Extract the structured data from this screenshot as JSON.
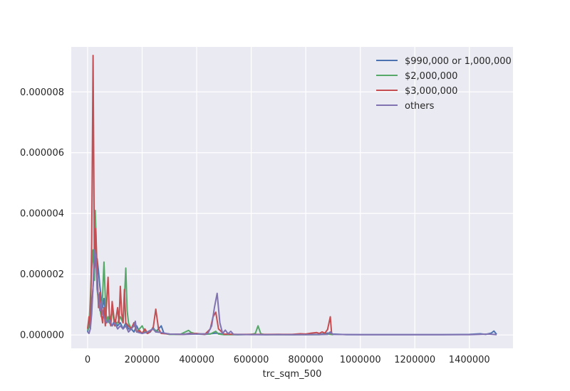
{
  "chart_data": {
    "type": "line",
    "title": "",
    "xlabel": "trc_sqm_500",
    "ylabel": "",
    "xlim": [
      -60000,
      1560000
    ],
    "ylim": [
      -4.4e-07,
      9.48e-06
    ],
    "grid": true,
    "background": "#EAEAF2",
    "legend_position": "top-right",
    "x_ticks": [
      0,
      200000,
      400000,
      600000,
      800000,
      1000000,
      1200000,
      1400000
    ],
    "x_tick_labels": [
      "0",
      "200000",
      "400000",
      "600000",
      "800000",
      "1000000",
      "1200000",
      "1400000"
    ],
    "y_ticks": [
      0,
      2e-06,
      4e-06,
      6e-06,
      8e-06
    ],
    "y_tick_labels": [
      "0.000000",
      "0.000002",
      "0.000004",
      "0.000006",
      "0.000008"
    ],
    "series": [
      {
        "name": "$990,000 or 1,000,000",
        "color": "#4C72B0",
        "points": [
          [
            0,
            1e-07
          ],
          [
            8000,
            4e-07
          ],
          [
            15000,
            9e-07
          ],
          [
            20000,
            1.6e-06
          ],
          [
            25000,
            2.2e-06
          ],
          [
            30000,
            2.6e-06
          ],
          [
            35000,
            2.5e-06
          ],
          [
            40000,
            2.1e-06
          ],
          [
            45000,
            1.6e-06
          ],
          [
            50000,
            1.2e-06
          ],
          [
            55000,
            9e-07
          ],
          [
            60000,
            1.2e-06
          ],
          [
            65000,
            8e-07
          ],
          [
            70000,
            5e-07
          ],
          [
            80000,
            4e-07
          ],
          [
            90000,
            3e-07
          ],
          [
            100000,
            5e-07
          ],
          [
            110000,
            3e-07
          ],
          [
            120000,
            4e-07
          ],
          [
            130000,
            2e-07
          ],
          [
            140000,
            4e-07
          ],
          [
            150000,
            2e-07
          ],
          [
            160000,
            2e-07
          ],
          [
            170000,
            1e-07
          ],
          [
            180000,
            3e-07
          ],
          [
            190000,
            1e-07
          ],
          [
            200000,
            5e-08
          ],
          [
            210000,
            1e-07
          ],
          [
            220000,
            5e-08
          ],
          [
            230000,
            1e-07
          ],
          [
            240000,
            2.5e-07
          ],
          [
            250000,
            1e-07
          ],
          [
            260000,
            2e-07
          ],
          [
            270000,
            3e-07
          ],
          [
            280000,
            5e-08
          ],
          [
            300000,
            3e-08
          ],
          [
            350000,
            2e-08
          ],
          [
            380000,
            6e-08
          ],
          [
            400000,
            3e-08
          ],
          [
            430000,
            2e-08
          ],
          [
            470000,
            6e-08
          ],
          [
            500000,
            3e-08
          ],
          [
            550000,
            1e-08
          ],
          [
            600000,
            2e-08
          ],
          [
            650000,
            1e-08
          ],
          [
            700000,
            2e-08
          ],
          [
            750000,
            1e-08
          ],
          [
            800000,
            2e-08
          ],
          [
            850000,
            2e-08
          ],
          [
            880000,
            6e-08
          ],
          [
            900000,
            3e-08
          ],
          [
            950000,
            1e-08
          ],
          [
            1000000,
            1e-08
          ],
          [
            1100000,
            1e-08
          ],
          [
            1200000,
            1e-08
          ],
          [
            1300000,
            1e-08
          ],
          [
            1400000,
            2e-08
          ],
          [
            1440000,
            4e-08
          ],
          [
            1460000,
            2e-08
          ],
          [
            1480000,
            6e-08
          ],
          [
            1490000,
            1.3e-07
          ],
          [
            1500000,
            2e-08
          ]
        ]
      },
      {
        "name": "$2,000,000",
        "color": "#55A868",
        "points": [
          [
            0,
            1.5e-07
          ],
          [
            5000,
            3e-07
          ],
          [
            10000,
            1.2e-06
          ],
          [
            15000,
            2.2e-06
          ],
          [
            20000,
            2.8e-06
          ],
          [
            25000,
            1.8e-06
          ],
          [
            28000,
            4.1e-06
          ],
          [
            30000,
            3.5e-06
          ],
          [
            35000,
            1.5e-06
          ],
          [
            40000,
            1.1e-06
          ],
          [
            45000,
            9e-07
          ],
          [
            50000,
            6e-07
          ],
          [
            55000,
            1.3e-06
          ],
          [
            60000,
            2.4e-06
          ],
          [
            65000,
            1.2e-06
          ],
          [
            70000,
            4e-07
          ],
          [
            75000,
            6e-07
          ],
          [
            80000,
            4e-07
          ],
          [
            90000,
            8e-07
          ],
          [
            100000,
            3e-07
          ],
          [
            110000,
            4e-07
          ],
          [
            120000,
            6e-07
          ],
          [
            130000,
            4e-07
          ],
          [
            135000,
            1.2e-06
          ],
          [
            140000,
            2.2e-06
          ],
          [
            145000,
            8e-07
          ],
          [
            150000,
            4e-07
          ],
          [
            160000,
            2e-07
          ],
          [
            170000,
            4e-07
          ],
          [
            180000,
            1e-07
          ],
          [
            190000,
            2e-07
          ],
          [
            200000,
            3e-07
          ],
          [
            210000,
            1e-07
          ],
          [
            220000,
            1e-07
          ],
          [
            240000,
            2e-07
          ],
          [
            260000,
            1e-07
          ],
          [
            280000,
            5e-08
          ],
          [
            300000,
            2e-08
          ],
          [
            340000,
            2e-08
          ],
          [
            370000,
            1.5e-07
          ],
          [
            380000,
            8e-08
          ],
          [
            400000,
            3e-08
          ],
          [
            450000,
            3e-08
          ],
          [
            470000,
            1.2e-07
          ],
          [
            480000,
            3e-08
          ],
          [
            500000,
            1e-08
          ],
          [
            550000,
            1e-08
          ],
          [
            600000,
            2e-08
          ],
          [
            615000,
            5e-08
          ],
          [
            625000,
            3e-07
          ],
          [
            635000,
            4e-08
          ],
          [
            650000,
            1e-08
          ],
          [
            700000,
            1e-08
          ],
          [
            750000,
            1e-08
          ],
          [
            800000,
            1e-08
          ],
          [
            850000,
            1e-08
          ],
          [
            880000,
            3e-08
          ],
          [
            900000,
            1e-08
          ]
        ]
      },
      {
        "name": "$3,000,000",
        "color": "#C44E52",
        "points": [
          [
            0,
            2e-07
          ],
          [
            5000,
            6e-07
          ],
          [
            10000,
            2e-07
          ],
          [
            15000,
            3e-06
          ],
          [
            20000,
            9.2e-06
          ],
          [
            25000,
            2.2e-06
          ],
          [
            30000,
            3.5e-06
          ],
          [
            35000,
            2.1e-06
          ],
          [
            40000,
            9e-07
          ],
          [
            45000,
            1.4e-06
          ],
          [
            50000,
            7e-07
          ],
          [
            55000,
            4e-07
          ],
          [
            60000,
            9e-07
          ],
          [
            65000,
            3e-07
          ],
          [
            70000,
            1.1e-06
          ],
          [
            75000,
            1.9e-06
          ],
          [
            80000,
            6e-07
          ],
          [
            85000,
            3e-07
          ],
          [
            90000,
            1.1e-06
          ],
          [
            100000,
            3e-07
          ],
          [
            110000,
            9e-07
          ],
          [
            115000,
            4e-07
          ],
          [
            120000,
            1.6e-06
          ],
          [
            125000,
            7e-07
          ],
          [
            130000,
            4e-07
          ],
          [
            135000,
            1.5e-06
          ],
          [
            140000,
            4e-07
          ],
          [
            150000,
            3e-07
          ],
          [
            160000,
            2e-07
          ],
          [
            170000,
            4e-07
          ],
          [
            180000,
            1e-07
          ],
          [
            190000,
            1.5e-07
          ],
          [
            200000,
            5e-08
          ],
          [
            210000,
            2e-07
          ],
          [
            220000,
            5e-08
          ],
          [
            240000,
            2e-07
          ],
          [
            250000,
            8.5e-07
          ],
          [
            260000,
            2e-07
          ],
          [
            270000,
            5e-08
          ],
          [
            300000,
            3e-08
          ],
          [
            350000,
            2e-08
          ],
          [
            400000,
            5e-08
          ],
          [
            430000,
            2e-08
          ],
          [
            450000,
            2e-07
          ],
          [
            460000,
            6e-07
          ],
          [
            470000,
            7.5e-07
          ],
          [
            480000,
            2e-07
          ],
          [
            500000,
            3e-08
          ],
          [
            550000,
            2e-08
          ],
          [
            600000,
            2e-08
          ],
          [
            650000,
            2e-08
          ],
          [
            700000,
            2e-08
          ],
          [
            750000,
            2e-08
          ],
          [
            780000,
            4e-08
          ],
          [
            800000,
            3e-08
          ],
          [
            820000,
            6e-08
          ],
          [
            840000,
            8e-08
          ],
          [
            850000,
            5e-08
          ],
          [
            860000,
            1e-07
          ],
          [
            870000,
            6e-08
          ],
          [
            880000,
            1.8e-07
          ],
          [
            890000,
            6e-07
          ],
          [
            895000,
            2e-08
          ]
        ]
      },
      {
        "name": "others",
        "color": "#8172B2",
        "points": [
          [
            0,
            1e-07
          ],
          [
            5000,
            5e-08
          ],
          [
            10000,
            2e-07
          ],
          [
            15000,
            7e-07
          ],
          [
            20000,
            1.6e-06
          ],
          [
            25000,
            2.8e-06
          ],
          [
            30000,
            2.6e-06
          ],
          [
            35000,
            1.5e-06
          ],
          [
            40000,
            1.3e-06
          ],
          [
            45000,
            8e-07
          ],
          [
            50000,
            1.1e-06
          ],
          [
            55000,
            7e-07
          ],
          [
            60000,
            6e-07
          ],
          [
            70000,
            4e-07
          ],
          [
            80000,
            5e-07
          ],
          [
            90000,
            3e-07
          ],
          [
            100000,
            4e-07
          ],
          [
            110000,
            2e-07
          ],
          [
            120000,
            3e-07
          ],
          [
            130000,
            2e-07
          ],
          [
            140000,
            3e-07
          ],
          [
            150000,
            1e-07
          ],
          [
            160000,
            2e-07
          ],
          [
            170000,
            3e-07
          ],
          [
            175000,
            4.5e-07
          ],
          [
            180000,
            1e-07
          ],
          [
            200000,
            5e-08
          ],
          [
            220000,
            1e-07
          ],
          [
            240000,
            2e-07
          ],
          [
            250000,
            1e-07
          ],
          [
            270000,
            8e-08
          ],
          [
            300000,
            3e-08
          ],
          [
            350000,
            2e-08
          ],
          [
            400000,
            3e-08
          ],
          [
            440000,
            4e-08
          ],
          [
            455000,
            3e-07
          ],
          [
            465000,
            9e-07
          ],
          [
            475000,
            1.37e-06
          ],
          [
            485000,
            4e-07
          ],
          [
            495000,
            5e-08
          ],
          [
            505000,
            1.6e-07
          ],
          [
            515000,
            4e-08
          ],
          [
            525000,
            1.2e-07
          ],
          [
            535000,
            2e-08
          ],
          [
            600000,
            1e-08
          ],
          [
            700000,
            1e-08
          ],
          [
            800000,
            1e-08
          ],
          [
            880000,
            2e-08
          ],
          [
            890000,
            1e-07
          ],
          [
            900000,
            2e-08
          ],
          [
            1000000,
            1e-08
          ],
          [
            1200000,
            1e-08
          ],
          [
            1400000,
            1e-08
          ],
          [
            1470000,
            3e-08
          ],
          [
            1490000,
            2e-08
          ],
          [
            1500000,
            1e-08
          ]
        ]
      }
    ]
  }
}
